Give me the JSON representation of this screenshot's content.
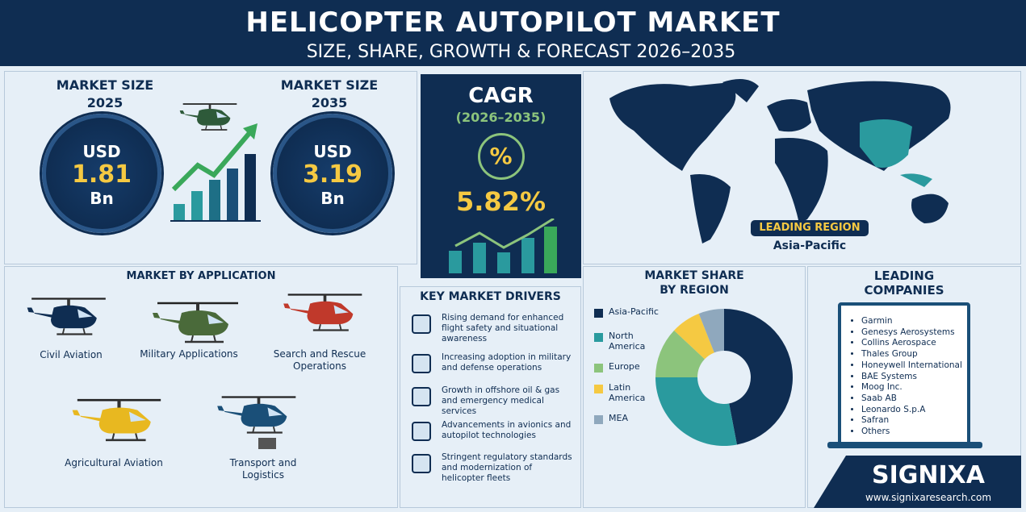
{
  "header": {
    "title": "HELICOPTER AUTOPILOT MARKET",
    "subtitle": "SIZE, SHARE, GROWTH & FORECAST 2026–2035"
  },
  "market_size": [
    {
      "label": "MARKET SIZE",
      "year": "2025",
      "currency": "USD",
      "value": "1.81",
      "unit": "Bn"
    },
    {
      "label": "MARKET SIZE",
      "year": "2035",
      "currency": "USD",
      "value": "3.19",
      "unit": "Bn"
    }
  ],
  "cagr": {
    "title": "CAGR",
    "period": "(2026–2035)",
    "symbol": "%",
    "value": "5.82%"
  },
  "map": {
    "badge": "LEADING REGION",
    "region": "Asia-Pacific"
  },
  "applications": {
    "title": "MARKET BY APPLICATION",
    "items": [
      "Civil Aviation",
      "Military Applications",
      "Search and Rescue Operations",
      "Agricultural Aviation",
      "Transport and Logistics"
    ]
  },
  "drivers": {
    "title": "KEY MARKET DRIVERS",
    "items": [
      "Rising demand for enhanced flight safety and situational awareness",
      "Increasing adoption in military and defense operations",
      "Growth in offshore oil & gas and emergency medical services",
      "Advancements in avionics and autopilot technologies",
      "Stringent regulatory standards and modernization of helicopter fleets"
    ]
  },
  "chart_data": {
    "type": "pie",
    "donut": true,
    "title": "MARKET SHARE BY REGION",
    "categories": [
      "Asia-Pacific",
      "North America",
      "Europe",
      "Latin America",
      "MEA"
    ],
    "values": [
      47,
      28,
      12,
      7,
      6
    ],
    "colors": [
      "#0f2d52",
      "#2a9a9e",
      "#8cc47c",
      "#f5c942",
      "#8fa8bd"
    ]
  },
  "companies": {
    "title": "LEADING COMPANIES",
    "items": [
      "Garmin",
      "Genesys Aerosystems",
      "Collins Aerospace",
      "Thales Group",
      "Honeywell International",
      "BAE Systems",
      "Moog Inc.",
      "Saab AB",
      "Leonardo S.p.A",
      "Safran",
      "Others"
    ]
  },
  "footer": {
    "brand": "SIGNIXA",
    "url": "www.signixaresearch.com"
  }
}
